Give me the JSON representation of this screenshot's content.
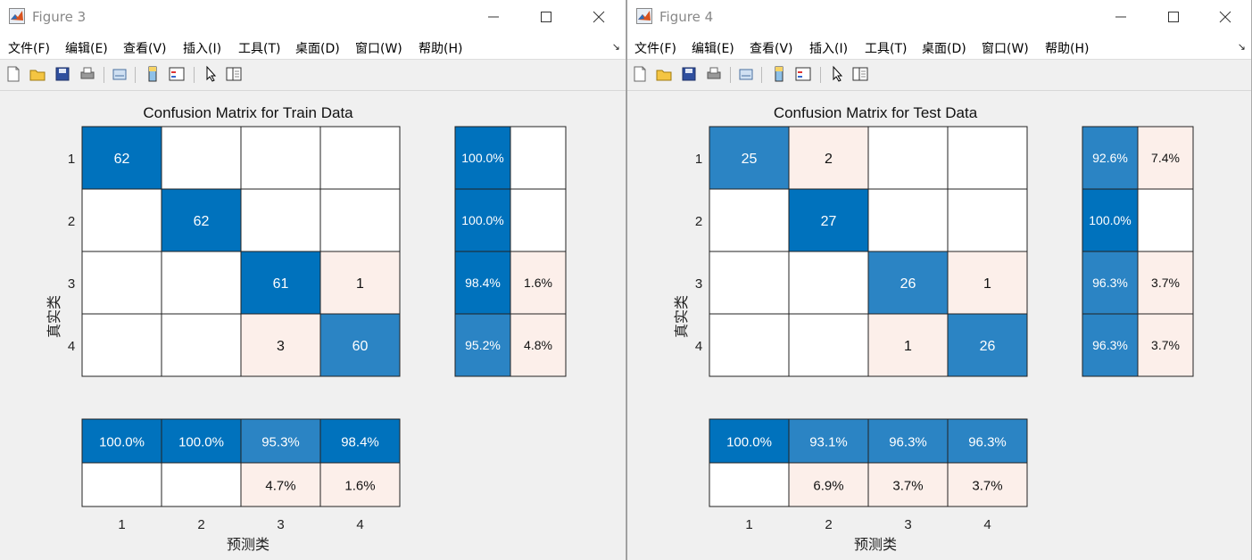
{
  "colors": {
    "blue": "#0072bd",
    "diag_text": "#ffffff",
    "offdiag_light": "#fcefea",
    "light_blue": "#2b84c4",
    "white": "#ffffff",
    "grid": "#222222"
  },
  "menus": [
    "文件(F)",
    "编辑(E)",
    "查看(V)",
    "插入(I)",
    "工具(T)",
    "桌面(D)",
    "窗口(W)",
    "帮助(H)"
  ],
  "window_buttons": [
    "minimize-icon",
    "maximize-icon",
    "close-icon"
  ],
  "toolbar_icons": [
    "new-figure-icon",
    "open-file-icon",
    "save-icon",
    "print-icon",
    "link-plot-icon",
    "insert-colorbar-icon",
    "insert-legend-icon",
    "pointer-icon",
    "property-inspector-icon"
  ],
  "figures": [
    {
      "window_title": "Figure 3",
      "chart_data": {
        "type": "heatmap",
        "title": "Confusion Matrix for Train Data",
        "xlabel": "预测类",
        "ylabel": "真实类",
        "classes": [
          "1",
          "2",
          "3",
          "4"
        ],
        "matrix": [
          [
            62,
            0,
            0,
            0
          ],
          [
            0,
            62,
            0,
            0
          ],
          [
            0,
            0,
            61,
            1
          ],
          [
            0,
            0,
            3,
            60
          ]
        ],
        "row_summary": [
          [
            "100.0%",
            ""
          ],
          [
            "100.0%",
            ""
          ],
          [
            "98.4%",
            "1.6%"
          ],
          [
            "95.2%",
            "4.8%"
          ]
        ],
        "column_summary": [
          [
            "100.0%",
            ""
          ],
          [
            "100.0%",
            ""
          ],
          [
            "95.3%",
            "4.7%"
          ],
          [
            "98.4%",
            "1.6%"
          ]
        ]
      }
    },
    {
      "window_title": "Figure 4",
      "chart_data": {
        "type": "heatmap",
        "title": "Confusion Matrix for Test Data",
        "xlabel": "预测类",
        "ylabel": "真实类",
        "classes": [
          "1",
          "2",
          "3",
          "4"
        ],
        "matrix": [
          [
            25,
            2,
            0,
            0
          ],
          [
            0,
            27,
            0,
            0
          ],
          [
            0,
            0,
            26,
            1
          ],
          [
            0,
            0,
            1,
            26
          ]
        ],
        "row_summary": [
          [
            "92.6%",
            "7.4%"
          ],
          [
            "100.0%",
            ""
          ],
          [
            "96.3%",
            "3.7%"
          ],
          [
            "96.3%",
            "3.7%"
          ]
        ],
        "column_summary": [
          [
            "100.0%",
            ""
          ],
          [
            "93.1%",
            "6.9%"
          ],
          [
            "96.3%",
            "3.7%"
          ],
          [
            "96.3%",
            "3.7%"
          ]
        ]
      }
    }
  ]
}
